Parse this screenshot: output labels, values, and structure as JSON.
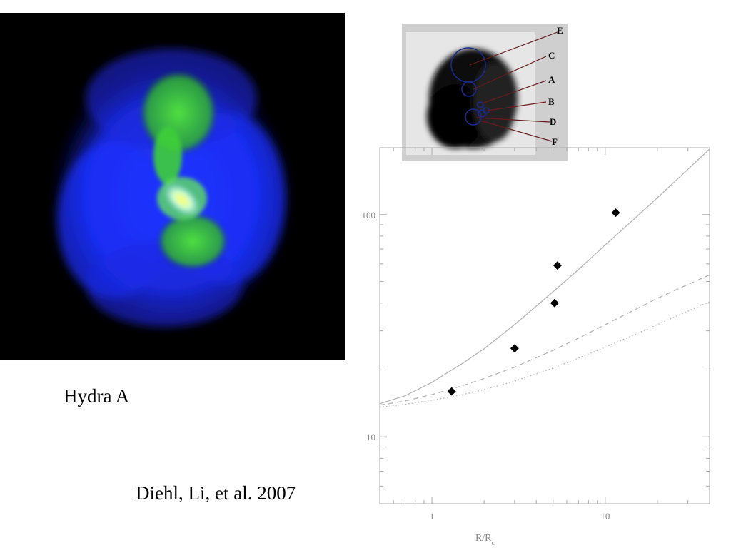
{
  "captions": {
    "object_name": "Hydra A",
    "reference": "Diehl, Li, et al. 2007"
  },
  "inset": {
    "region_labels": [
      "E",
      "C",
      "A",
      "B",
      "D",
      "F"
    ]
  },
  "colors": {
    "background": "#ffffff",
    "image_background": "#000000",
    "xray_emission": "#1a2cff",
    "radio_emission": "#3fcf3a",
    "curves": "#b5b5b5",
    "markers": "#000000",
    "inset_circles": "#1a2a8c",
    "inset_leader_lines": "#6a1a1a"
  },
  "chart_data": {
    "type": "scatter",
    "xlabel": "R/R",
    "xlabel_subscript": "c",
    "ylabel": "",
    "xscale": "log",
    "yscale": "log",
    "xlim": [
      0.5,
      40
    ],
    "ylim": [
      5,
      200
    ],
    "x_tick_labels": [
      "1",
      "10"
    ],
    "y_tick_labels": [
      "10",
      "100"
    ],
    "points": [
      {
        "x": 1.3,
        "y": 16
      },
      {
        "x": 3.0,
        "y": 25
      },
      {
        "x": 5.1,
        "y": 40
      },
      {
        "x": 5.3,
        "y": 59
      },
      {
        "x": 11.5,
        "y": 102
      }
    ],
    "curves": [
      {
        "style": "solid",
        "points": [
          [
            0.5,
            14.1
          ],
          [
            0.7,
            15.3
          ],
          [
            1,
            17.6
          ],
          [
            1.5,
            21.4
          ],
          [
            2,
            24.9
          ],
          [
            3,
            32
          ],
          [
            5,
            45
          ],
          [
            7,
            56.5
          ],
          [
            10,
            73
          ],
          [
            15,
            97
          ],
          [
            20,
            119
          ],
          [
            30,
            160
          ],
          [
            40,
            197
          ]
        ]
      },
      {
        "style": "dashed",
        "points": [
          [
            0.5,
            13.9
          ],
          [
            0.7,
            14.5
          ],
          [
            1,
            15.5
          ],
          [
            1.5,
            17
          ],
          [
            2,
            18.3
          ],
          [
            3,
            20.6
          ],
          [
            5,
            24.5
          ],
          [
            7,
            27.8
          ],
          [
            10,
            32
          ],
          [
            15,
            37.5
          ],
          [
            20,
            42
          ],
          [
            30,
            48.5
          ],
          [
            40,
            53.5
          ]
        ]
      },
      {
        "style": "dotted",
        "points": [
          [
            0.5,
            13.6
          ],
          [
            0.7,
            14
          ],
          [
            1,
            14.6
          ],
          [
            1.5,
            15.5
          ],
          [
            2,
            16.3
          ],
          [
            3,
            17.8
          ],
          [
            5,
            20.4
          ],
          [
            7,
            22.6
          ],
          [
            10,
            25.3
          ],
          [
            15,
            29
          ],
          [
            20,
            32
          ],
          [
            30,
            36.8
          ],
          [
            40,
            40.5
          ]
        ]
      }
    ]
  }
}
